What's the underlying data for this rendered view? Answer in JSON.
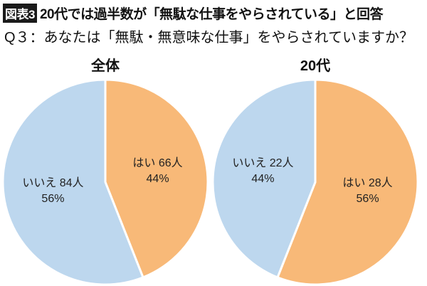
{
  "header": {
    "badge": "図表3",
    "title": "20代では過半数が「無駄な仕事をやらされている」と回答",
    "question": "Q３：あなたは「無駄・無意味な仕事」をやらされていますか？"
  },
  "colors": {
    "yes": "#F8B978",
    "no": "#BDD7EE",
    "separator": "#FFFFFF"
  },
  "chart_data": [
    {
      "type": "pie",
      "title": "全体",
      "slices": [
        {
          "label": "はい",
          "count": "66人",
          "percent": 44,
          "percent_label": "44%",
          "color": "#F8B978"
        },
        {
          "label": "いいえ",
          "count": "84人",
          "percent": 56,
          "percent_label": "56%",
          "color": "#BDD7EE"
        }
      ]
    },
    {
      "type": "pie",
      "title": "20代",
      "slices": [
        {
          "label": "はい",
          "count": "28人",
          "percent": 56,
          "percent_label": "56%",
          "color": "#F8B978"
        },
        {
          "label": "いいえ",
          "count": "22人",
          "percent": 44,
          "percent_label": "44%",
          "color": "#BDD7EE"
        }
      ]
    }
  ]
}
